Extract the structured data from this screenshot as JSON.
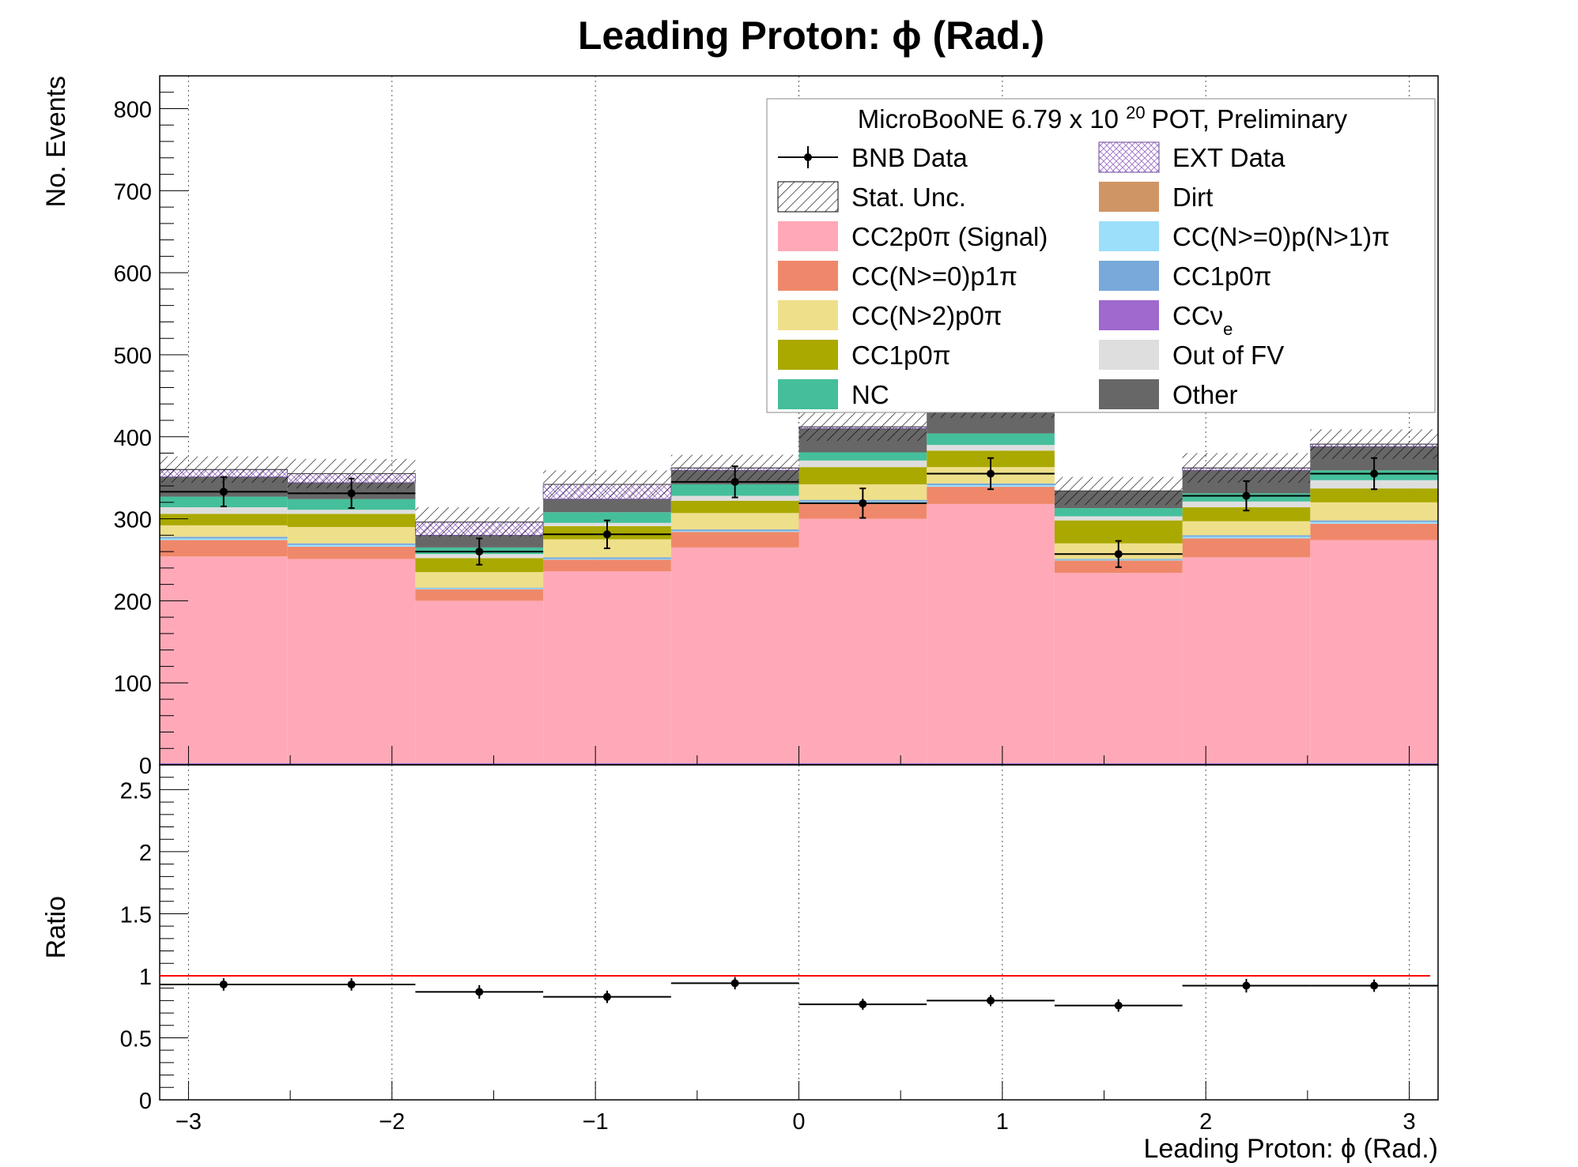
{
  "chart_data": [
    {
      "type": "bar",
      "stacked": true,
      "title": "Leading Proton:  ϕ (Rad.)",
      "ylabel": "No. Events",
      "xlim": [
        -3.14159,
        3.14159
      ],
      "ylim": [
        0,
        840
      ],
      "yticks": [
        0,
        100,
        200,
        300,
        400,
        500,
        600,
        700,
        800
      ],
      "xticks": [
        -3,
        -2,
        -1,
        0,
        1,
        2,
        3
      ],
      "xticklabels": [
        "−3",
        "−2",
        "−1",
        "0",
        "1",
        "2",
        "3"
      ],
      "grid": "vertical dotted",
      "bin_edges": [
        -3.14159,
        -2.51327,
        -1.88496,
        -1.25664,
        -0.62832,
        0.0,
        0.62832,
        1.25664,
        1.88496,
        2.51327,
        3.14159
      ],
      "series": [
        {
          "name": "CC2p0π (Signal)",
          "color": "#FFA9B8",
          "values": [
            254,
            251,
            200,
            236,
            265,
            300,
            318,
            234,
            253,
            274
          ]
        },
        {
          "name": "Dirt",
          "color": "#CF9565",
          "values": [
            0,
            0,
            0,
            0,
            0,
            0,
            0,
            0,
            0,
            0
          ]
        },
        {
          "name": "CC(N>=0)p1π",
          "color": "#EF886A",
          "values": [
            20,
            15,
            14,
            14,
            19,
            19,
            21,
            15,
            23,
            20
          ]
        },
        {
          "name": "CC(N>=0)p(N>1)π",
          "color": "#9BDFFB",
          "values": [
            2,
            2,
            1,
            1,
            1,
            2,
            2,
            1,
            2,
            2
          ]
        },
        {
          "name": "CC1p0π",
          "color": "#78A9DA",
          "values": [
            2,
            2,
            1,
            2,
            2,
            2,
            2,
            1,
            2,
            2
          ]
        },
        {
          "name": "CC(N>2)p0π",
          "color": "#EEDF8A",
          "values": [
            14,
            20,
            19,
            22,
            20,
            19,
            20,
            19,
            17,
            22
          ]
        },
        {
          "name": "CCν_e",
          "color": "#9F69CE",
          "values": [
            0,
            0,
            0,
            0,
            0,
            0,
            0,
            0,
            0,
            0
          ]
        },
        {
          "name": "CC1p0π",
          "color": "#AAA900",
          "values": [
            14,
            16,
            17,
            16,
            15,
            21,
            20,
            28,
            17,
            17
          ]
        },
        {
          "name": "Out of FV",
          "color": "#DEDEDE",
          "values": [
            8,
            5,
            5,
            4,
            6,
            8,
            7,
            5,
            7,
            10
          ]
        },
        {
          "name": "NC",
          "color": "#45BF9B",
          "values": [
            13,
            13,
            8,
            13,
            14,
            10,
            14,
            10,
            10,
            12
          ]
        },
        {
          "name": "Other",
          "color": "#676767",
          "values": [
            24,
            20,
            15,
            16,
            17,
            29,
            37,
            21,
            28,
            29
          ]
        },
        {
          "name": "EXT Data",
          "color": "#9A70C8",
          "values": [
            9,
            11,
            16,
            18,
            3,
            2,
            0,
            0,
            3,
            3
          ]
        }
      ],
      "stat_unc": [
        16,
        18,
        18,
        17,
        16,
        17,
        18,
        17,
        18,
        18
      ],
      "data": {
        "name": "BNB Data",
        "x": [
          -2.82743,
          -2.19911,
          -1.5708,
          -0.94248,
          -0.31416,
          0.31416,
          0.94248,
          1.5708,
          2.19911,
          2.82743
        ],
        "y": [
          333,
          331,
          260,
          281,
          345,
          319,
          355,
          257,
          328,
          355
        ],
        "yerr": [
          18,
          18,
          16,
          17,
          19,
          18,
          19,
          16,
          18,
          19
        ]
      },
      "legend": {
        "placement": "top-right",
        "header": "MicroBooNE 6.79 x 10",
        "header_sup": "20",
        "header_tail": "POT, Preliminary",
        "entries": [
          {
            "label": "BNB Data",
            "style": "marker",
            "color": "#000000"
          },
          {
            "label": "EXT Data",
            "style": "crosshatch",
            "color": "#9A70C8"
          },
          {
            "label": "Stat. Unc.",
            "style": "hatch",
            "color": "#000000"
          },
          {
            "label": "Dirt",
            "style": "fill",
            "color": "#CF9565"
          },
          {
            "label": "CC2p0π (Signal)",
            "style": "fill",
            "color": "#FFA9B8"
          },
          {
            "label": "CC(N>=0)p(N>1)π",
            "style": "fill",
            "color": "#9BDFFB"
          },
          {
            "label": "CC(N>=0)p1π",
            "style": "fill",
            "color": "#EF886A"
          },
          {
            "label": "CC1p0π",
            "style": "fill",
            "color": "#78A9DA"
          },
          {
            "label": "CC(N>2)p0π",
            "style": "fill",
            "color": "#EEDF8A"
          },
          {
            "label": "CCν",
            "sub": "e",
            "style": "fill",
            "color": "#9F69CE"
          },
          {
            "label": "CC1p0π",
            "style": "fill",
            "color": "#AAA900"
          },
          {
            "label": "Out of FV",
            "style": "fill",
            "color": "#DEDEDE"
          },
          {
            "label": "NC",
            "style": "fill",
            "color": "#45BF9B"
          },
          {
            "label": "Other",
            "style": "fill",
            "color": "#676767"
          }
        ]
      }
    },
    {
      "type": "scatter",
      "ylabel": "Ratio",
      "xlabel": "Leading Proton: ϕ (Rad.)",
      "xlim": [
        -3.14159,
        3.14159
      ],
      "ylim": [
        0,
        2.7
      ],
      "yticks": [
        0,
        0.5,
        1,
        1.5,
        2,
        2.5
      ],
      "yticklabels": [
        "0",
        "0.5",
        "1",
        "1.5",
        "2",
        "2.5"
      ],
      "reference_line": {
        "y": 1,
        "color": "#FF0000"
      },
      "x": [
        -2.82743,
        -2.19911,
        -1.5708,
        -0.94248,
        -0.31416,
        0.31416,
        0.94248,
        1.5708,
        2.19911,
        2.82743
      ],
      "y": [
        0.93,
        0.93,
        0.87,
        0.83,
        0.94,
        0.77,
        0.8,
        0.76,
        0.92,
        0.92
      ],
      "yerr": [
        0.05,
        0.05,
        0.055,
        0.05,
        0.05,
        0.045,
        0.045,
        0.05,
        0.055,
        0.05
      ]
    }
  ]
}
